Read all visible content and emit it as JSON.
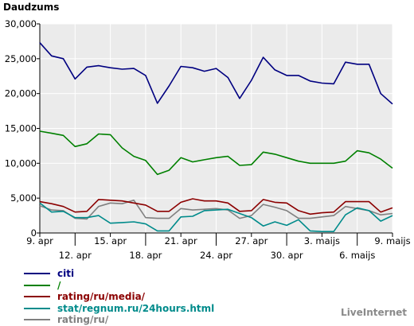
{
  "chart_data": {
    "type": "line",
    "title": "Daudzums",
    "ylim": [
      0,
      30000
    ],
    "yticks": [
      "0",
      "5,000",
      "10,000",
      "15,000",
      "20,000",
      "25,000",
      "30,000"
    ],
    "ytick_values": [
      0,
      5000,
      10000,
      15000,
      20000,
      25000,
      30000
    ],
    "x": [
      "9. apr",
      "10. apr",
      "11. apr",
      "12. apr",
      "13. apr",
      "14. apr",
      "15. apr",
      "16. apr",
      "17. apr",
      "18. apr",
      "19. apr",
      "20. apr",
      "21. apr",
      "22. apr",
      "23. apr",
      "24. apr",
      "25. apr",
      "26. apr",
      "27. apr",
      "28. apr",
      "29. apr",
      "30. apr",
      "1. maijs",
      "2. maijs",
      "3. maijs",
      "4. maijs",
      "5. maijs",
      "6. maijs",
      "7. maijs",
      "8. maijs",
      "9. maijs"
    ],
    "xtick_labels": [
      {
        "label": "9. apr",
        "index": 0,
        "row": 1
      },
      {
        "label": "12. apr",
        "index": 3,
        "row": 2
      },
      {
        "label": "15. apr",
        "index": 6,
        "row": 1
      },
      {
        "label": "18. apr",
        "index": 9,
        "row": 2
      },
      {
        "label": "21. apr",
        "index": 12,
        "row": 1
      },
      {
        "label": "24. apr",
        "index": 15,
        "row": 2
      },
      {
        "label": "27. apr",
        "index": 18,
        "row": 1
      },
      {
        "label": "30. apr",
        "index": 21,
        "row": 2
      },
      {
        "label": "3. maijs",
        "index": 24,
        "row": 1
      },
      {
        "label": "6. maijs",
        "index": 27,
        "row": 2
      },
      {
        "label": "9. maijs",
        "index": 30,
        "row": 1
      }
    ],
    "grid": true,
    "legend_position": "bottom-left",
    "series": [
      {
        "name": "citi",
        "color": "#000080",
        "values": [
          27300,
          25400,
          25000,
          22100,
          23800,
          24000,
          23700,
          23500,
          23600,
          22600,
          18600,
          21100,
          23900,
          23700,
          23200,
          23600,
          22300,
          19300,
          21900,
          25200,
          23400,
          22600,
          22600,
          21800,
          21500,
          21400,
          24500,
          24200,
          24200,
          20000,
          18500
        ]
      },
      {
        "name": "/",
        "color": "#008000",
        "values": [
          14600,
          14300,
          14000,
          12400,
          12800,
          14200,
          14100,
          12200,
          11000,
          10400,
          8400,
          9000,
          10800,
          10200,
          10500,
          10800,
          11000,
          9700,
          9800,
          11600,
          11300,
          10800,
          10300,
          10000,
          10000,
          10000,
          10300,
          11800,
          11500,
          10600,
          9300
        ]
      },
      {
        "name": "rating/ru/media/",
        "color": "#8b0000",
        "values": [
          4500,
          4200,
          3800,
          3000,
          3100,
          4800,
          4700,
          4600,
          4300,
          4000,
          3100,
          3100,
          4400,
          4900,
          4600,
          4600,
          4300,
          3100,
          3200,
          4800,
          4400,
          4300,
          3200,
          2700,
          2900,
          3000,
          4500,
          4500,
          4500,
          3000,
          3600
        ]
      },
      {
        "name": "stat/regnum.ru/24hours.html",
        "color": "#008b8b",
        "values": [
          4300,
          3000,
          3100,
          2200,
          2200,
          2500,
          1400,
          1500,
          1600,
          1300,
          300,
          300,
          2300,
          2400,
          3200,
          3300,
          3400,
          2800,
          2200,
          1000,
          1600,
          1100,
          1900,
          300,
          200,
          200,
          2600,
          3600,
          3200,
          1700,
          2500
        ]
      },
      {
        "name": "rating/ru/",
        "color": "#808080",
        "values": [
          3900,
          3300,
          3200,
          2100,
          2000,
          3800,
          4300,
          4200,
          4700,
          2200,
          2100,
          2100,
          3500,
          3300,
          3400,
          3500,
          3300,
          2100,
          2500,
          4100,
          3700,
          3200,
          2100,
          2100,
          2300,
          2500,
          3800,
          3500,
          3200,
          2600,
          2800
        ]
      }
    ]
  },
  "watermark": "LiveInternet"
}
